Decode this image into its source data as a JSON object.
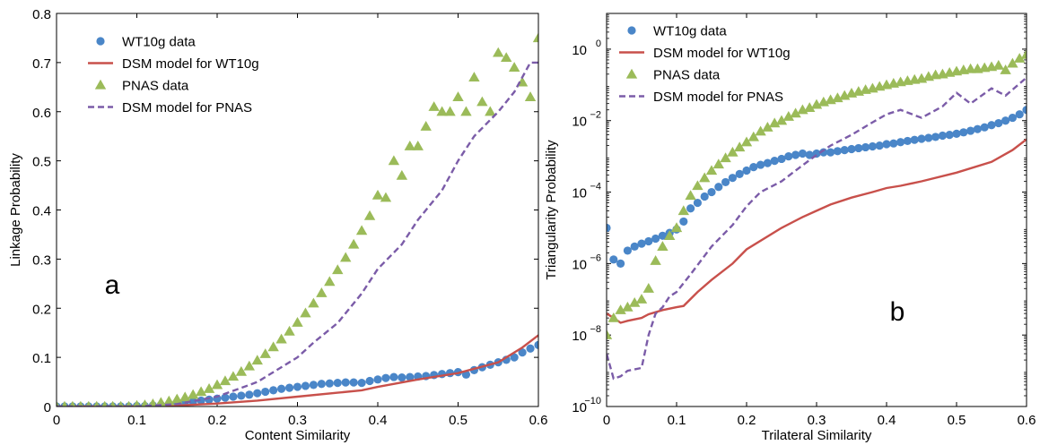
{
  "colors": {
    "wt10g": "#4a86c8",
    "dsm_wt10g": "#c8504b",
    "pnas": "#9bbb59",
    "dsm_pnas": "#7b5ca8",
    "axis": "#000000"
  },
  "chart_data": [
    {
      "panel_label": "a",
      "type": "line",
      "xlabel": "Content Similarity",
      "ylabel": "Linkage Probability",
      "xlim": [
        0,
        0.6
      ],
      "ylim": [
        0,
        0.8
      ],
      "xticks": [
        0,
        0.1,
        0.2,
        0.3,
        0.4,
        0.5,
        0.6
      ],
      "xtick_labels": [
        "0",
        "0.1",
        "0.2",
        "0.3",
        "0.4",
        "0.5",
        "0.6"
      ],
      "yticks": [
        0,
        0.1,
        0.2,
        0.3,
        0.4,
        0.5,
        0.6,
        0.7,
        0.8
      ],
      "ytick_labels": [
        "0",
        "0.1",
        "0.2",
        "0.3",
        "0.4",
        "0.5",
        "0.6",
        "0.7",
        "0.8"
      ],
      "legend_position": "top-left",
      "series": [
        {
          "name": "WT10g data",
          "style": "circle",
          "color": "#4a86c8",
          "x": [
            0,
            0.01,
            0.02,
            0.03,
            0.04,
            0.05,
            0.06,
            0.07,
            0.08,
            0.09,
            0.1,
            0.11,
            0.12,
            0.13,
            0.14,
            0.15,
            0.16,
            0.17,
            0.18,
            0.19,
            0.2,
            0.21,
            0.22,
            0.23,
            0.24,
            0.25,
            0.26,
            0.27,
            0.28,
            0.29,
            0.3,
            0.31,
            0.32,
            0.33,
            0.34,
            0.35,
            0.36,
            0.37,
            0.38,
            0.39,
            0.4,
            0.41,
            0.42,
            0.43,
            0.44,
            0.45,
            0.46,
            0.47,
            0.48,
            0.49,
            0.5,
            0.51,
            0.52,
            0.53,
            0.54,
            0.55,
            0.56,
            0.57,
            0.58,
            0.59,
            0.6
          ],
          "y": [
            0,
            0,
            0,
            0,
            0,
            0,
            0,
            0,
            0,
            0,
            0.001,
            0.001,
            0.002,
            0.003,
            0.004,
            0.006,
            0.008,
            0.01,
            0.012,
            0.014,
            0.016,
            0.018,
            0.02,
            0.022,
            0.024,
            0.027,
            0.03,
            0.033,
            0.036,
            0.038,
            0.04,
            0.042,
            0.044,
            0.046,
            0.047,
            0.048,
            0.049,
            0.049,
            0.048,
            0.052,
            0.055,
            0.058,
            0.06,
            0.059,
            0.06,
            0.061,
            0.062,
            0.064,
            0.066,
            0.068,
            0.07,
            0.065,
            0.074,
            0.08,
            0.085,
            0.09,
            0.095,
            0.1,
            0.11,
            0.118,
            0.125
          ]
        },
        {
          "name": "DSM model for WT10g",
          "style": "line",
          "color": "#c8504b",
          "x": [
            0,
            0.05,
            0.1,
            0.15,
            0.2,
            0.25,
            0.3,
            0.35,
            0.38,
            0.4,
            0.45,
            0.5,
            0.55,
            0.58,
            0.6
          ],
          "y": [
            0,
            0,
            0,
            0.002,
            0.006,
            0.012,
            0.02,
            0.028,
            0.033,
            0.04,
            0.055,
            0.068,
            0.09,
            0.12,
            0.145
          ]
        },
        {
          "name": "PNAS data",
          "style": "triangle",
          "color": "#9bbb59",
          "x": [
            0,
            0.01,
            0.02,
            0.03,
            0.04,
            0.05,
            0.06,
            0.07,
            0.08,
            0.09,
            0.1,
            0.11,
            0.12,
            0.13,
            0.14,
            0.15,
            0.16,
            0.17,
            0.18,
            0.19,
            0.2,
            0.21,
            0.22,
            0.23,
            0.24,
            0.25,
            0.26,
            0.27,
            0.28,
            0.29,
            0.3,
            0.31,
            0.32,
            0.33,
            0.34,
            0.35,
            0.36,
            0.37,
            0.38,
            0.39,
            0.4,
            0.41,
            0.42,
            0.43,
            0.44,
            0.45,
            0.46,
            0.47,
            0.48,
            0.49,
            0.5,
            0.51,
            0.52,
            0.53,
            0.54,
            0.55,
            0.56,
            0.57,
            0.58,
            0.59,
            0.6
          ],
          "y": [
            0,
            0,
            0,
            0,
            0,
            0,
            0,
            0,
            0,
            0,
            0.002,
            0.003,
            0.005,
            0.008,
            0.011,
            0.015,
            0.019,
            0.024,
            0.03,
            0.036,
            0.044,
            0.052,
            0.061,
            0.071,
            0.082,
            0.094,
            0.107,
            0.121,
            0.137,
            0.153,
            0.171,
            0.19,
            0.21,
            0.231,
            0.254,
            0.278,
            0.303,
            0.33,
            0.358,
            0.388,
            0.43,
            0.425,
            0.5,
            0.47,
            0.53,
            0.53,
            0.57,
            0.61,
            0.6,
            0.6,
            0.63,
            0.6,
            0.67,
            0.62,
            0.6,
            0.72,
            0.71,
            0.69,
            0.66,
            0.63,
            0.75
          ]
        },
        {
          "name": "DSM model for PNAS",
          "style": "dashed",
          "color": "#7b5ca8",
          "x": [
            0,
            0.05,
            0.1,
            0.15,
            0.2,
            0.25,
            0.3,
            0.32,
            0.35,
            0.38,
            0.4,
            0.43,
            0.45,
            0.48,
            0.5,
            0.52,
            0.55,
            0.57,
            0.59,
            0.6
          ],
          "y": [
            0,
            0,
            0,
            0.005,
            0.02,
            0.05,
            0.1,
            0.13,
            0.17,
            0.23,
            0.28,
            0.33,
            0.38,
            0.44,
            0.5,
            0.55,
            0.6,
            0.64,
            0.7,
            0.7
          ]
        }
      ]
    },
    {
      "panel_label": "b",
      "type": "line",
      "xlabel": "Trilateral Similarity",
      "ylabel": "Triangularity Probability",
      "xscale": "log-y",
      "xlim": [
        0,
        0.6
      ],
      "ylim": [
        1e-10,
        10
      ],
      "xticks": [
        0,
        0.1,
        0.2,
        0.3,
        0.4,
        0.5,
        0.6
      ],
      "xtick_labels": [
        "0",
        "0.1",
        "0.2",
        "0.3",
        "0.4",
        "0.5",
        "0.6"
      ],
      "yticks": [
        1e-10,
        1e-08,
        1e-06,
        0.0001,
        0.01,
        1
      ],
      "ytick_labels": [
        [
          "10",
          "−10"
        ],
        [
          "10",
          "−8"
        ],
        [
          "10",
          "−6"
        ],
        [
          "10",
          "−4"
        ],
        [
          "10",
          "−2"
        ],
        [
          "10",
          "0"
        ]
      ],
      "legend_position": "top-left",
      "series": [
        {
          "name": "WT10g data",
          "style": "circle",
          "color": "#4a86c8",
          "x": [
            0,
            0.01,
            0.02,
            0.03,
            0.04,
            0.05,
            0.06,
            0.07,
            0.08,
            0.09,
            0.1,
            0.11,
            0.12,
            0.13,
            0.14,
            0.15,
            0.16,
            0.17,
            0.18,
            0.19,
            0.2,
            0.21,
            0.22,
            0.23,
            0.24,
            0.25,
            0.26,
            0.27,
            0.28,
            0.29,
            0.3,
            0.31,
            0.32,
            0.33,
            0.34,
            0.35,
            0.36,
            0.37,
            0.38,
            0.39,
            0.4,
            0.41,
            0.42,
            0.43,
            0.44,
            0.45,
            0.46,
            0.47,
            0.48,
            0.49,
            0.5,
            0.51,
            0.52,
            0.53,
            0.54,
            0.55,
            0.56,
            0.57,
            0.58,
            0.59,
            0.6
          ],
          "y": [
            1e-05,
            1.3e-06,
            1e-06,
            2.3e-06,
            3e-06,
            3.6e-06,
            4.2e-06,
            5e-06,
            6e-06,
            7.2e-06,
            9e-06,
            1.5e-05,
            3.5e-05,
            5e-05,
            7.5e-05,
            0.0001,
            0.00014,
            0.00019,
            0.00025,
            0.00032,
            0.0004,
            0.0005,
            0.00058,
            0.00065,
            0.00075,
            0.00085,
            0.001,
            0.0011,
            0.0012,
            0.0011,
            0.0012,
            0.0013,
            0.0013,
            0.0014,
            0.0015,
            0.0016,
            0.0017,
            0.0018,
            0.0019,
            0.002,
            0.0022,
            0.0023,
            0.0025,
            0.0027,
            0.0029,
            0.0031,
            0.0033,
            0.0035,
            0.0038,
            0.004,
            0.0043,
            0.0047,
            0.0052,
            0.0058,
            0.0065,
            0.0075,
            0.0085,
            0.01,
            0.012,
            0.015,
            0.02
          ]
        },
        {
          "name": "DSM model for WT10g",
          "style": "line",
          "color": "#c8504b",
          "x": [
            0,
            0.01,
            0.02,
            0.03,
            0.05,
            0.06,
            0.08,
            0.1,
            0.11,
            0.13,
            0.15,
            0.18,
            0.2,
            0.25,
            0.28,
            0.3,
            0.32,
            0.35,
            0.38,
            0.4,
            0.42,
            0.45,
            0.5,
            0.55,
            0.58,
            0.6
          ],
          "y": [
            4e-08,
            3e-08,
            2.2e-08,
            2.5e-08,
            3e-08,
            3.8e-08,
            5e-08,
            6e-08,
            6.5e-08,
            1.6e-07,
            3.5e-07,
            1e-06,
            2.5e-06,
            1e-05,
            2e-05,
            3e-05,
            4.5e-05,
            7e-05,
            0.0001,
            0.00013,
            0.00015,
            0.0002,
            0.00035,
            0.0007,
            0.0015,
            0.003
          ]
        },
        {
          "name": "PNAS data",
          "style": "triangle",
          "color": "#9bbb59",
          "x": [
            0,
            0.01,
            0.02,
            0.03,
            0.04,
            0.05,
            0.06,
            0.07,
            0.08,
            0.09,
            0.1,
            0.11,
            0.12,
            0.13,
            0.14,
            0.15,
            0.16,
            0.17,
            0.18,
            0.19,
            0.2,
            0.21,
            0.22,
            0.23,
            0.24,
            0.25,
            0.26,
            0.27,
            0.28,
            0.29,
            0.3,
            0.31,
            0.32,
            0.33,
            0.34,
            0.35,
            0.36,
            0.37,
            0.38,
            0.39,
            0.4,
            0.41,
            0.42,
            0.43,
            0.44,
            0.45,
            0.46,
            0.47,
            0.48,
            0.49,
            0.5,
            0.51,
            0.52,
            0.53,
            0.54,
            0.55,
            0.56,
            0.57,
            0.58,
            0.59,
            0.6
          ],
          "y": [
            1e-08,
            3e-08,
            5e-08,
            6e-08,
            8e-08,
            1e-07,
            2e-07,
            1.2e-06,
            3e-06,
            6e-06,
            1e-05,
            3e-05,
            8e-05,
            0.00015,
            0.00025,
            0.0004,
            0.0006,
            0.0009,
            0.0013,
            0.0018,
            0.0025,
            0.0035,
            0.005,
            0.0065,
            0.0085,
            0.01,
            0.013,
            0.016,
            0.02,
            0.023,
            0.028,
            0.033,
            0.038,
            0.043,
            0.05,
            0.058,
            0.065,
            0.073,
            0.08,
            0.09,
            0.1,
            0.11,
            0.12,
            0.13,
            0.14,
            0.15,
            0.17,
            0.19,
            0.2,
            0.22,
            0.24,
            0.26,
            0.28,
            0.28,
            0.3,
            0.32,
            0.35,
            0.26,
            0.4,
            0.55,
            0.7
          ]
        },
        {
          "name": "DSM model for PNAS",
          "style": "dashed",
          "color": "#7b5ca8",
          "x": [
            0,
            0.01,
            0.02,
            0.03,
            0.05,
            0.06,
            0.07,
            0.08,
            0.09,
            0.1,
            0.12,
            0.15,
            0.18,
            0.2,
            0.22,
            0.25,
            0.27,
            0.3,
            0.32,
            0.35,
            0.38,
            0.4,
            0.42,
            0.45,
            0.48,
            0.5,
            0.52,
            0.55,
            0.57,
            0.6
          ],
          "y": [
            3e-09,
            6e-10,
            7e-10,
            1e-09,
            1.2e-09,
            1e-08,
            4e-08,
            6e-08,
            1.2e-07,
            1.6e-07,
            5e-07,
            3e-06,
            1.2e-05,
            4e-05,
            0.0001,
            0.0002,
            0.0004,
            0.0011,
            0.002,
            0.004,
            0.009,
            0.015,
            0.02,
            0.012,
            0.025,
            0.06,
            0.03,
            0.08,
            0.05,
            0.16
          ]
        }
      ]
    }
  ]
}
